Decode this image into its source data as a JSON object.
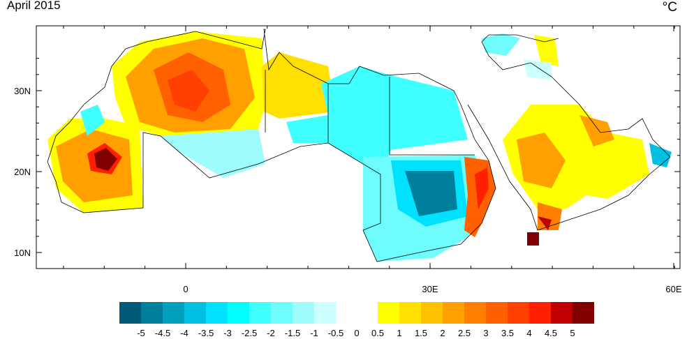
{
  "title": "April 2015",
  "units": "oC",
  "map": {
    "region": "Arab world",
    "lon_range": [
      -18.3,
      60.7
    ],
    "lat_range": [
      8,
      38
    ],
    "x_ticks": [
      "0",
      "30E",
      "60E"
    ],
    "y_ticks": [
      "30N",
      "20N",
      "10N"
    ]
  },
  "colorbar": {
    "labels": [
      "-5",
      "-4.5",
      "-4",
      "-3.5",
      "-3",
      "-2.5",
      "-2",
      "-1.5",
      "-1",
      "-0.5",
      "0",
      "0.5",
      "1",
      "1.5",
      "2",
      "2.5",
      "3",
      "3.5",
      "4",
      "4.5",
      "5"
    ],
    "cold_colors": [
      "#005a78",
      "#007f9c",
      "#00a0bc",
      "#00bfe0",
      "#00e0ff",
      "#00ffff",
      "#40ffff",
      "#6ffcfc",
      "#9ffcfc",
      "#ccffff"
    ],
    "warm_colors": [
      "#ffff00",
      "#ffe000",
      "#ffc000",
      "#ffa000",
      "#ff8000",
      "#ff6000",
      "#ff4000",
      "#ff2000",
      "#c00000",
      "#800000"
    ]
  }
}
